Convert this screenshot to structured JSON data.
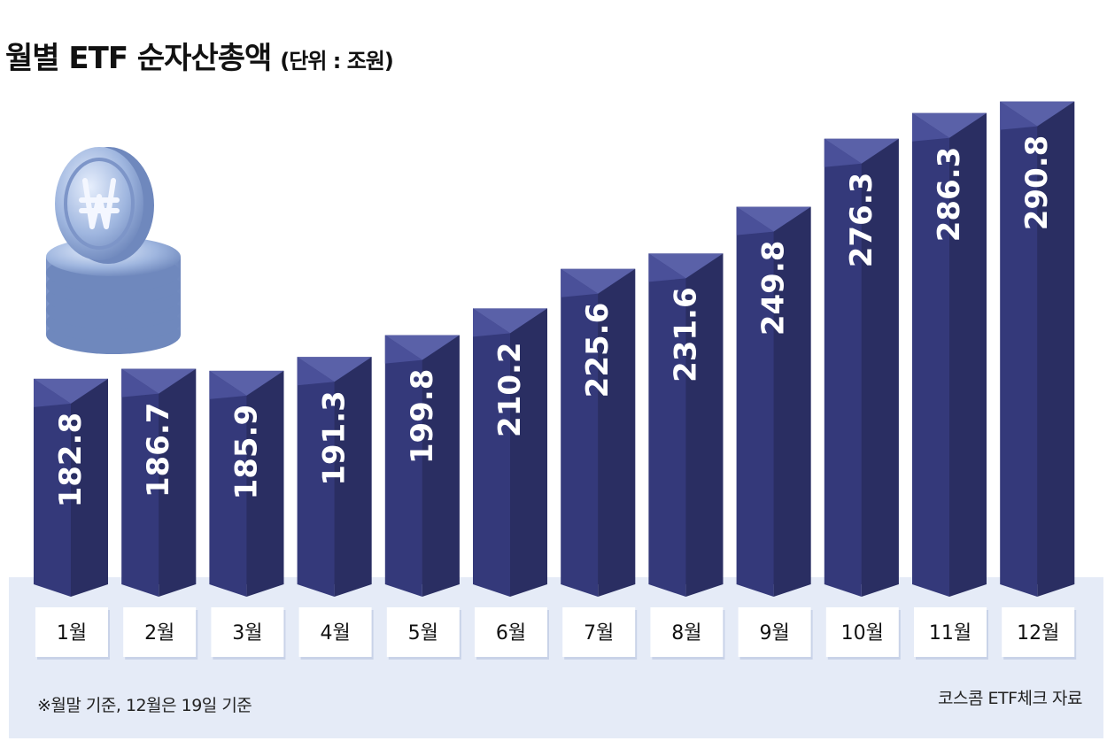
{
  "title": "월별 ETF 순자산총액",
  "unit": "(단위 : 조원)",
  "note": "※월말 기준, 12월은 19일 기준",
  "source": "코스콤 ETF체크 자료",
  "colors": {
    "bar_front": "#34397a",
    "bar_side": "#2a2e62",
    "bar_top": "#5a61a8",
    "band": "#e5ebf7",
    "coin": "#9bb3de"
  },
  "chart_data": {
    "type": "bar",
    "categories": [
      "1월",
      "2월",
      "3월",
      "4월",
      "5월",
      "6월",
      "7월",
      "8월",
      "9월",
      "10월",
      "11월",
      "12월"
    ],
    "values": [
      182.8,
      186.7,
      185.9,
      191.3,
      199.8,
      210.2,
      225.6,
      231.6,
      249.8,
      276.3,
      286.3,
      290.8
    ],
    "value_labels": [
      "182.8",
      "186.7",
      "185.9",
      "191.3",
      "199.8",
      "210.2",
      "225.6",
      "231.6",
      "249.8",
      "276.3",
      "286.3",
      "290.8"
    ],
    "title": "월별 ETF 순자산총액",
    "ylabel": "",
    "xlabel": "",
    "grid": false,
    "legend": "none"
  }
}
